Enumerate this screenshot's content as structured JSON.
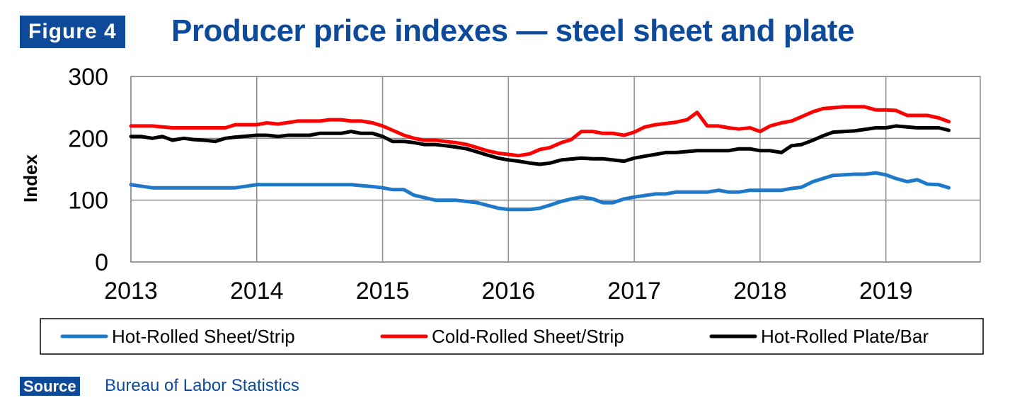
{
  "header": {
    "figure_label": "Figure 4",
    "title": "Producer price indexes — steel sheet and plate"
  },
  "source": {
    "label": "Source",
    "text": "Bureau of Labor Statistics"
  },
  "colors": {
    "brand": "#0d4a9a",
    "hot_rolled_sheet": "#1f78c8",
    "cold_rolled_sheet": "#ff0000",
    "hot_rolled_plate": "#000000",
    "grid": "#8c8c8c"
  },
  "chart_data": {
    "type": "line",
    "ylabel": "Index",
    "xlabel": "",
    "ylim": [
      0,
      300
    ],
    "yticks": [
      0,
      100,
      200,
      300
    ],
    "xlim": [
      2013,
      2019.75
    ],
    "xticks": [
      "2013",
      "2014",
      "2015",
      "2016",
      "2017",
      "2018",
      "2019"
    ],
    "grid": true,
    "legend_position": "bottom",
    "series": [
      {
        "name": "Hot-Rolled Sheet/Strip",
        "color": "#1f78c8",
        "x": [
          2013,
          2013.17,
          2013.33,
          2013.5,
          2013.67,
          2013.83,
          2014,
          2014.25,
          2014.5,
          2014.75,
          2014.92,
          2015,
          2015.08,
          2015.17,
          2015.25,
          2015.42,
          2015.58,
          2015.75,
          2015.92,
          2016,
          2016.17,
          2016.25,
          2016.33,
          2016.42,
          2016.5,
          2016.58,
          2016.67,
          2016.75,
          2016.83,
          2016.92,
          2017,
          2017.17,
          2017.25,
          2017.33,
          2017.5,
          2017.58,
          2017.67,
          2017.75,
          2017.83,
          2017.92,
          2018,
          2018.17,
          2018.25,
          2018.33,
          2018.42,
          2018.58,
          2018.75,
          2018.83,
          2018.92,
          2019,
          2019.08,
          2019.17,
          2019.25,
          2019.33,
          2019.42,
          2019.5
        ],
        "values": [
          125,
          120,
          120,
          120,
          120,
          120,
          125,
          125,
          125,
          125,
          122,
          120,
          117,
          117,
          108,
          100,
          100,
          96,
          87,
          85,
          85,
          87,
          92,
          98,
          102,
          105,
          102,
          96,
          96,
          102,
          105,
          110,
          110,
          113,
          113,
          113,
          116,
          113,
          113,
          116,
          116,
          116,
          119,
          121,
          130,
          140,
          142,
          142,
          144,
          141,
          135,
          130,
          133,
          126,
          125,
          120
        ]
      },
      {
        "name": "Cold-Rolled Sheet/Strip",
        "color": "#ff0000",
        "x": [
          2013,
          2013.17,
          2013.33,
          2013.5,
          2013.67,
          2013.75,
          2013.83,
          2014,
          2014.08,
          2014.17,
          2014.33,
          2014.5,
          2014.58,
          2014.67,
          2014.75,
          2014.83,
          2014.92,
          2015,
          2015.08,
          2015.17,
          2015.25,
          2015.33,
          2015.42,
          2015.5,
          2015.58,
          2015.67,
          2015.75,
          2015.83,
          2015.92,
          2016,
          2016.08,
          2016.17,
          2016.25,
          2016.33,
          2016.42,
          2016.5,
          2016.58,
          2016.67,
          2016.75,
          2016.83,
          2016.92,
          2017,
          2017.08,
          2017.17,
          2017.25,
          2017.33,
          2017.42,
          2017.5,
          2017.58,
          2017.67,
          2017.75,
          2017.83,
          2017.92,
          2018,
          2018.08,
          2018.17,
          2018.25,
          2018.33,
          2018.42,
          2018.5,
          2018.67,
          2018.83,
          2018.92,
          2019,
          2019.08,
          2019.17,
          2019.25,
          2019.33,
          2019.42,
          2019.5
        ],
        "values": [
          220,
          220,
          217,
          217,
          217,
          217,
          222,
          222,
          225,
          223,
          228,
          228,
          230,
          230,
          228,
          228,
          225,
          220,
          213,
          205,
          200,
          197,
          197,
          195,
          193,
          190,
          185,
          180,
          176,
          174,
          172,
          175,
          182,
          185,
          193,
          198,
          211,
          211,
          208,
          208,
          205,
          210,
          218,
          222,
          224,
          226,
          230,
          242,
          220,
          220,
          217,
          215,
          217,
          211,
          220,
          225,
          228,
          235,
          243,
          248,
          251,
          251,
          246,
          246,
          245,
          237,
          237,
          237,
          233,
          227
        ]
      },
      {
        "name": "Hot-Rolled Plate/Bar",
        "color": "#000000",
        "x": [
          2013,
          2013.08,
          2013.17,
          2013.25,
          2013.33,
          2013.42,
          2013.5,
          2013.58,
          2013.67,
          2013.75,
          2013.83,
          2014,
          2014.08,
          2014.17,
          2014.25,
          2014.42,
          2014.5,
          2014.67,
          2014.75,
          2014.83,
          2014.92,
          2015,
          2015.08,
          2015.17,
          2015.25,
          2015.33,
          2015.42,
          2015.5,
          2015.58,
          2015.67,
          2015.75,
          2015.83,
          2015.92,
          2016,
          2016.08,
          2016.17,
          2016.25,
          2016.33,
          2016.42,
          2016.58,
          2016.67,
          2016.75,
          2016.83,
          2016.92,
          2017,
          2017.08,
          2017.17,
          2017.25,
          2017.33,
          2017.5,
          2017.58,
          2017.67,
          2017.75,
          2017.83,
          2017.92,
          2018,
          2018.08,
          2018.17,
          2018.25,
          2018.33,
          2018.42,
          2018.5,
          2018.58,
          2018.75,
          2018.92,
          2019,
          2019.08,
          2019.25,
          2019.33,
          2019.42,
          2019.5
        ],
        "values": [
          203,
          203,
          200,
          203,
          197,
          200,
          198,
          197,
          195,
          200,
          202,
          205,
          205,
          203,
          205,
          205,
          208,
          208,
          211,
          208,
          208,
          203,
          195,
          195,
          193,
          190,
          190,
          188,
          186,
          183,
          178,
          173,
          168,
          165,
          163,
          160,
          158,
          160,
          165,
          168,
          167,
          167,
          165,
          163,
          168,
          171,
          174,
          177,
          177,
          180,
          180,
          180,
          180,
          183,
          183,
          180,
          180,
          177,
          188,
          190,
          197,
          204,
          210,
          212,
          217,
          217,
          220,
          217,
          217,
          217,
          213
        ]
      }
    ]
  }
}
